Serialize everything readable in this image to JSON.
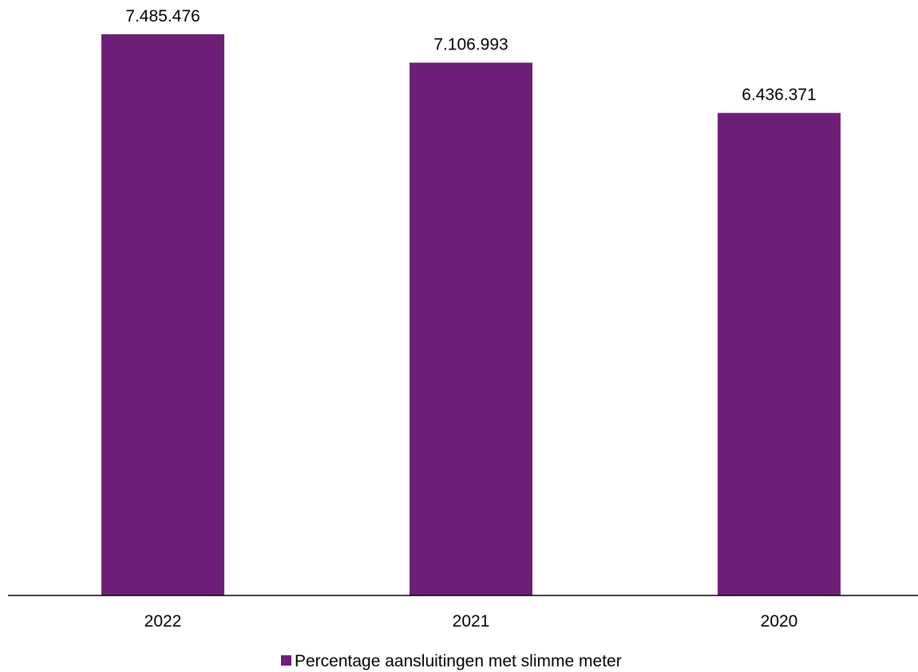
{
  "chart_data": {
    "type": "bar",
    "categories": [
      "2022",
      "2021",
      "2020"
    ],
    "series": [
      {
        "name": "Percentage aansluitingen met slimme meter",
        "values": [
          7485476,
          7106993,
          6436371
        ],
        "labels": [
          "7.485.476",
          "7.106.993",
          "6.436.371"
        ],
        "color": "#6e1f78"
      }
    ],
    "title": "",
    "xlabel": "",
    "ylabel": "",
    "ylim": [
      0,
      7485476
    ],
    "grid": false,
    "legend_position": "bottom-center"
  }
}
